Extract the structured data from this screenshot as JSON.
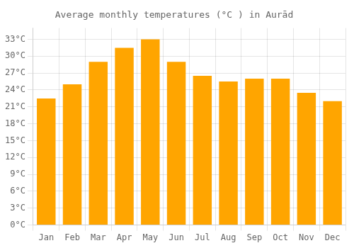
{
  "chart_data": {
    "type": "bar",
    "title": "Average monthly temperatures (°C ) in Aurād",
    "categories": [
      "Jan",
      "Feb",
      "Mar",
      "Apr",
      "May",
      "Jun",
      "Jul",
      "Aug",
      "Sep",
      "Oct",
      "Nov",
      "Dec"
    ],
    "values": [
      22.5,
      25.0,
      29.0,
      31.5,
      33.0,
      29.0,
      26.5,
      25.5,
      26.0,
      26.0,
      23.5,
      22.0
    ],
    "color": "#FFA500",
    "ylim": [
      0,
      35
    ],
    "yticks": [
      {
        "value": 0,
        "label": "0°C"
      },
      {
        "value": 3,
        "label": "3°C"
      },
      {
        "value": 6,
        "label": "6°C"
      },
      {
        "value": 9,
        "label": "9°C"
      },
      {
        "value": 12,
        "label": "12°C"
      },
      {
        "value": 15,
        "label": "15°C"
      },
      {
        "value": 18,
        "label": "18°C"
      },
      {
        "value": 21,
        "label": "21°C"
      },
      {
        "value": 24,
        "label": "24°C"
      },
      {
        "value": 27,
        "label": "27°C"
      },
      {
        "value": 30,
        "label": "30°C"
      },
      {
        "value": 33,
        "label": "33°C"
      }
    ],
    "grid": true
  }
}
